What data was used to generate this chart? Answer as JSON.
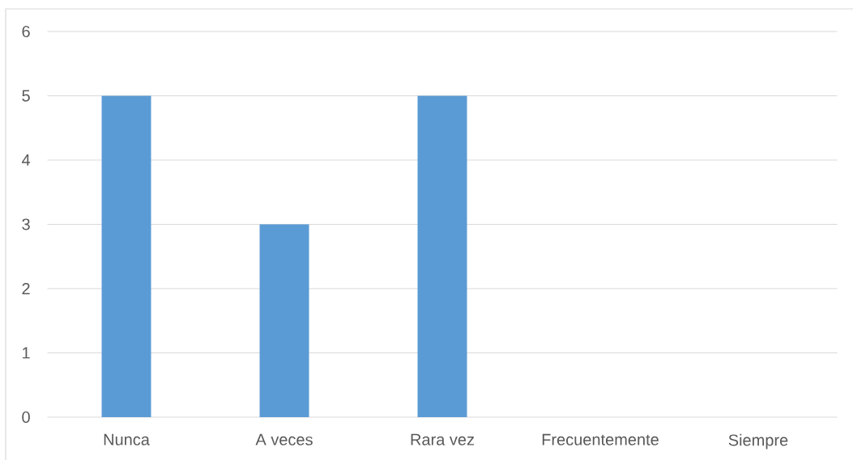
{
  "chart_data": {
    "type": "bar",
    "categories": [
      "Nunca",
      "A veces",
      "Rara vez",
      "Frecuentemente",
      "Siempre"
    ],
    "values": [
      5,
      3,
      5,
      0,
      0
    ],
    "color": "#5b9bd5",
    "ylim": [
      0,
      6
    ],
    "yticks": [
      0,
      1,
      2,
      3,
      4,
      5,
      6
    ],
    "grid": "y"
  }
}
